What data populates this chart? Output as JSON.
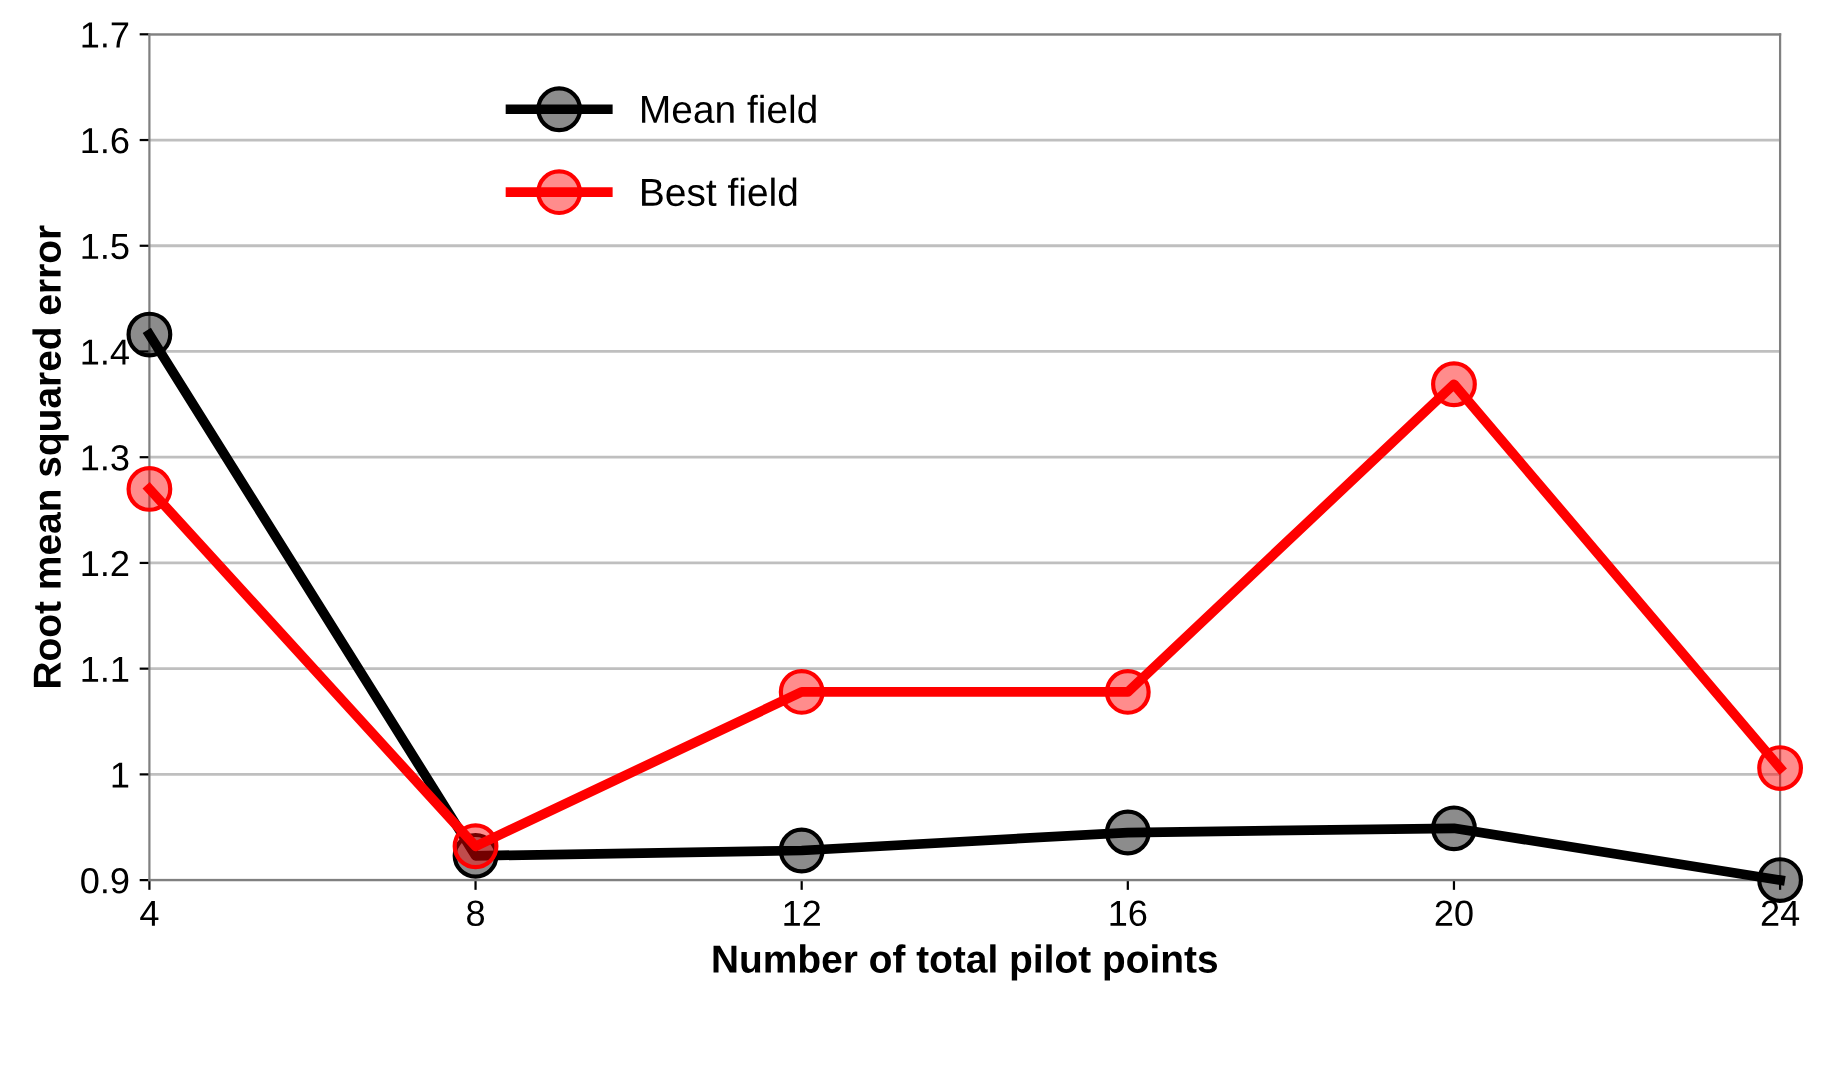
{
  "chart_data": {
    "type": "line",
    "xlabel": "Number of total pilot points",
    "ylabel": "Root mean squared error",
    "x": [
      4,
      8,
      12,
      16,
      20,
      24
    ],
    "series": [
      {
        "name": "Mean field",
        "color": "#000000",
        "values": [
          1.416,
          0.923,
          0.928,
          0.945,
          0.949,
          0.9
        ]
      },
      {
        "name": "Best field",
        "color": "#ff0000",
        "values": [
          1.27,
          0.932,
          1.078,
          1.078,
          1.369,
          1.006
        ]
      }
    ],
    "xlim": [
      4,
      24
    ],
    "xticks": [
      4,
      8,
      12,
      16,
      20,
      24
    ],
    "ylim": [
      0.9,
      1.7
    ],
    "yticks": [
      0.9,
      1,
      1.1,
      1.2,
      1.3,
      1.4,
      1.5,
      1.6,
      1.7
    ],
    "grid": "y",
    "legend": "top left",
    "marker": "circle",
    "line_style": "solid"
  }
}
